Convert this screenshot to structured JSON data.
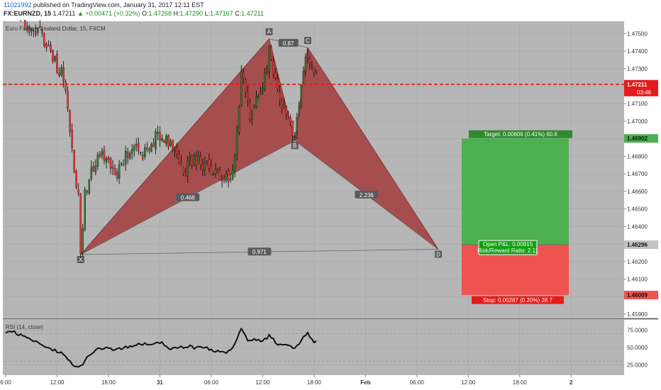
{
  "header": {
    "user_id": "11021992",
    "published_text": "published on TradingView.com, January 31, 2017 12:11 EST",
    "symbol": "FX:EURNZD, 15",
    "price": "1.47211",
    "change": "+0.00471 (+0.32%)",
    "ohlc": [
      {
        "label": "O:",
        "value": "1.47268"
      },
      {
        "label": "H:",
        "value": "1.47290"
      },
      {
        "label": "L:",
        "value": "1.47167"
      },
      {
        "label": "C:",
        "value": "1.47211"
      }
    ]
  },
  "colors": {
    "background": "#b6b6b6",
    "pattern_fill": "#a33c3c",
    "bull": "#2e7d32",
    "bear": "#e53935",
    "target_zone": "#4caf50",
    "stop_zone": "#ef5350",
    "price_line": "#e51a1a",
    "rsi_line": "#111111"
  },
  "chart_data": [
    {
      "type": "candlestick",
      "title": "Euro Fx/New Zealand Dollar, 15, FXCM",
      "y_ticks": [
        1.475,
        1.474,
        1.473,
        1.472,
        1.471,
        1.47,
        1.469,
        1.468,
        1.467,
        1.466,
        1.465,
        1.464,
        1.463,
        1.462,
        1.461,
        1.46,
        1.459
      ],
      "y_tick_labels": [
        "1.47500",
        "1.47400",
        "1.47300",
        "1.47200",
        "1.47100",
        "1.47000",
        "1.46900",
        "1.46800",
        "1.46700",
        "1.46600",
        "1.46500",
        "1.46400",
        "1.46300",
        "1.46200",
        "1.46100",
        "1.46000",
        "1.45900"
      ],
      "ylim": [
        1.4588,
        1.4757
      ],
      "x_ticks": [
        {
          "label": "6:00",
          "i": 0
        },
        {
          "label": "12:00",
          "i": 24
        },
        {
          "label": "18:00",
          "i": 48
        },
        {
          "label": "31",
          "i": 72
        },
        {
          "label": "06:00",
          "i": 96
        },
        {
          "label": "12:00",
          "i": 120
        },
        {
          "label": "18:00",
          "i": 144
        },
        {
          "label": "Feb",
          "i": 168
        },
        {
          "label": "06:00",
          "i": 192
        },
        {
          "label": "12:00",
          "i": 216
        },
        {
          "label": "18:00",
          "i": 240
        },
        {
          "label": "2",
          "i": 264
        }
      ],
      "grid": true,
      "last_price": 1.47211,
      "last_price_label": "1.47211",
      "countdown": "03:46",
      "pattern": {
        "points": [
          {
            "label": "X",
            "i": 35,
            "y": 1.4624
          },
          {
            "label": "A",
            "i": 123,
            "y": 1.4747
          },
          {
            "label": "B",
            "i": 135,
            "y": 1.4689
          },
          {
            "label": "C",
            "i": 141,
            "y": 1.4742
          },
          {
            "label": "D",
            "i": 202,
            "y": 1.4627
          }
        ],
        "ratios": [
          {
            "label": "0.468",
            "between": [
              "X",
              "B"
            ]
          },
          {
            "label": "0.87",
            "between": [
              "A",
              "C"
            ]
          },
          {
            "label": "2.236",
            "between": [
              "B",
              "D"
            ]
          },
          {
            "label": "0.971",
            "between": [
              "X",
              "D"
            ]
          }
        ]
      },
      "position": {
        "entry": 1.46296,
        "entry_label": "1.46296",
        "target": 1.46902,
        "target_label": "1.46902",
        "stop": 1.46009,
        "stop_label": "1.46009",
        "target_text": "Target: 0.00606 (0.41%) 60.6",
        "stop_text": "Stop: 0.00287 (0.20%) 28.7",
        "pnl_text": "Open P&L: 0.00915",
        "rr_text": "Risk/Reward Ratio: 2.11"
      },
      "anchors": [
        {
          "i": 0,
          "y": 1.4765
        },
        {
          "i": 6,
          "y": 1.4765
        },
        {
          "i": 10,
          "y": 1.4752
        },
        {
          "i": 16,
          "y": 1.4752
        },
        {
          "i": 20,
          "y": 1.4742
        },
        {
          "i": 24,
          "y": 1.4731
        },
        {
          "i": 26,
          "y": 1.4728
        },
        {
          "i": 28,
          "y": 1.4718
        },
        {
          "i": 30,
          "y": 1.4695
        },
        {
          "i": 32,
          "y": 1.4672
        },
        {
          "i": 34,
          "y": 1.4655
        },
        {
          "i": 35,
          "y": 1.4625
        },
        {
          "i": 37,
          "y": 1.4658
        },
        {
          "i": 40,
          "y": 1.4672
        },
        {
          "i": 44,
          "y": 1.4682
        },
        {
          "i": 48,
          "y": 1.4677
        },
        {
          "i": 52,
          "y": 1.467
        },
        {
          "i": 56,
          "y": 1.4679
        },
        {
          "i": 60,
          "y": 1.4685
        },
        {
          "i": 64,
          "y": 1.4682
        },
        {
          "i": 68,
          "y": 1.4688
        },
        {
          "i": 72,
          "y": 1.4693
        },
        {
          "i": 76,
          "y": 1.4687
        },
        {
          "i": 80,
          "y": 1.4678
        },
        {
          "i": 84,
          "y": 1.4673
        },
        {
          "i": 88,
          "y": 1.468
        },
        {
          "i": 92,
          "y": 1.4674
        },
        {
          "i": 96,
          "y": 1.4672
        },
        {
          "i": 100,
          "y": 1.4669
        },
        {
          "i": 104,
          "y": 1.4666
        },
        {
          "i": 106,
          "y": 1.467
        },
        {
          "i": 108,
          "y": 1.4694
        },
        {
          "i": 110,
          "y": 1.4726
        },
        {
          "i": 112,
          "y": 1.4716
        },
        {
          "i": 114,
          "y": 1.4702
        },
        {
          "i": 116,
          "y": 1.471
        },
        {
          "i": 118,
          "y": 1.4712
        },
        {
          "i": 120,
          "y": 1.4718
        },
        {
          "i": 122,
          "y": 1.473
        },
        {
          "i": 123,
          "y": 1.4745
        },
        {
          "i": 125,
          "y": 1.4728
        },
        {
          "i": 127,
          "y": 1.4716
        },
        {
          "i": 129,
          "y": 1.471
        },
        {
          "i": 131,
          "y": 1.4704
        },
        {
          "i": 133,
          "y": 1.4698
        },
        {
          "i": 135,
          "y": 1.4692
        },
        {
          "i": 137,
          "y": 1.4712
        },
        {
          "i": 139,
          "y": 1.4728
        },
        {
          "i": 141,
          "y": 1.474
        },
        {
          "i": 143,
          "y": 1.473
        },
        {
          "i": 145,
          "y": 1.4726
        }
      ],
      "rsi": {
        "label": "RSI (14, close)",
        "y_tick_labels": [
          "75.0000",
          "50.0000",
          "25.0000"
        ],
        "y_ticks": [
          75,
          50,
          25
        ],
        "ylim": [
          10,
          90
        ],
        "levels": [
          70,
          30
        ],
        "anchors": [
          {
            "i": 0,
            "y": 70
          },
          {
            "i": 4,
            "y": 73
          },
          {
            "i": 8,
            "y": 66
          },
          {
            "i": 12,
            "y": 60
          },
          {
            "i": 16,
            "y": 55
          },
          {
            "i": 20,
            "y": 50
          },
          {
            "i": 24,
            "y": 44
          },
          {
            "i": 28,
            "y": 38
          },
          {
            "i": 31,
            "y": 28
          },
          {
            "i": 33,
            "y": 22
          },
          {
            "i": 35,
            "y": 24
          },
          {
            "i": 37,
            "y": 30
          },
          {
            "i": 40,
            "y": 42
          },
          {
            "i": 44,
            "y": 48
          },
          {
            "i": 48,
            "y": 50
          },
          {
            "i": 52,
            "y": 46
          },
          {
            "i": 56,
            "y": 50
          },
          {
            "i": 60,
            "y": 52
          },
          {
            "i": 64,
            "y": 55
          },
          {
            "i": 68,
            "y": 52
          },
          {
            "i": 72,
            "y": 58
          },
          {
            "i": 76,
            "y": 50
          },
          {
            "i": 80,
            "y": 47
          },
          {
            "i": 84,
            "y": 52
          },
          {
            "i": 88,
            "y": 49
          },
          {
            "i": 92,
            "y": 51
          },
          {
            "i": 96,
            "y": 47
          },
          {
            "i": 100,
            "y": 44
          },
          {
            "i": 104,
            "y": 43
          },
          {
            "i": 106,
            "y": 48
          },
          {
            "i": 108,
            "y": 62
          },
          {
            "i": 110,
            "y": 76
          },
          {
            "i": 112,
            "y": 66
          },
          {
            "i": 114,
            "y": 58
          },
          {
            "i": 116,
            "y": 62
          },
          {
            "i": 118,
            "y": 60
          },
          {
            "i": 120,
            "y": 61
          },
          {
            "i": 122,
            "y": 64
          },
          {
            "i": 123,
            "y": 70
          },
          {
            "i": 125,
            "y": 62
          },
          {
            "i": 127,
            "y": 55
          },
          {
            "i": 129,
            "y": 52
          },
          {
            "i": 131,
            "y": 55
          },
          {
            "i": 133,
            "y": 50
          },
          {
            "i": 135,
            "y": 48
          },
          {
            "i": 137,
            "y": 55
          },
          {
            "i": 139,
            "y": 65
          },
          {
            "i": 141,
            "y": 70
          },
          {
            "i": 143,
            "y": 60
          },
          {
            "i": 145,
            "y": 58
          }
        ]
      }
    }
  ]
}
